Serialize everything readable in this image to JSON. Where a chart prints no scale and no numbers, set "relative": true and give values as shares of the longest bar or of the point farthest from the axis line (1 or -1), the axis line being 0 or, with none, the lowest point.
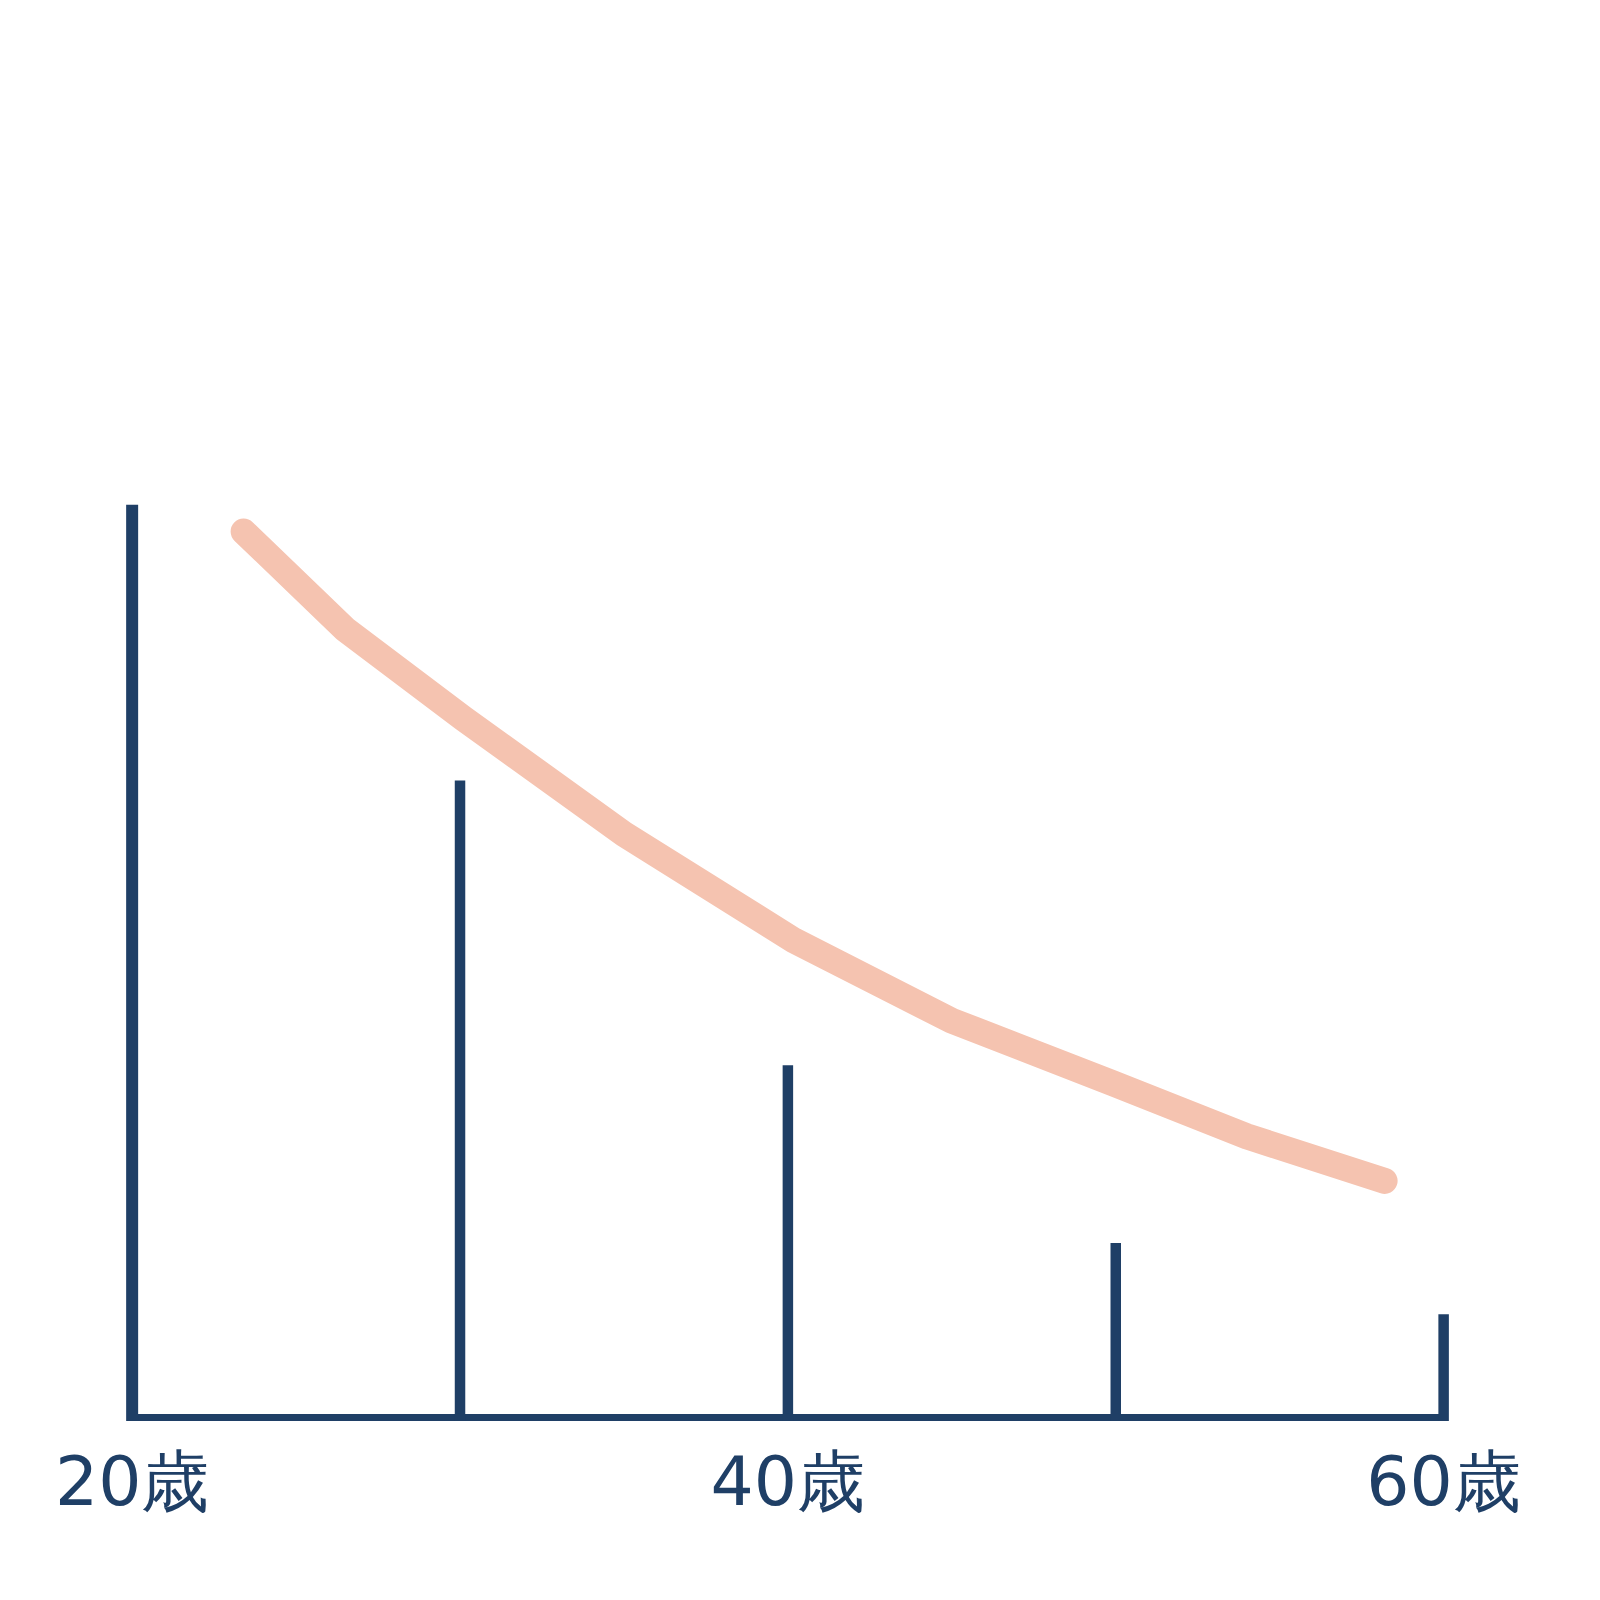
{
  "chart_data": {
    "type": "line",
    "relative": true,
    "xlim": [
      20,
      60
    ],
    "xticks": [
      {
        "value": 20,
        "label": "20歳"
      },
      {
        "value": 40,
        "label": "40歳"
      },
      {
        "value": 60,
        "label": "60歳"
      }
    ],
    "grid": false,
    "line_style": "solid",
    "series": [
      {
        "color": "#f5c3b0",
        "x": [
          23.4,
          26.5,
          30.1,
          35,
          40.2,
          45,
          49.9,
          54,
          58.2
        ],
        "values": [
          1,
          0.89,
          0.79,
          0.66,
          0.54,
          0.45,
          0.38,
          0.32,
          0.27
        ]
      },
      {
        "type": "bar",
        "color": "#1f3f66",
        "x": [
          30,
          40,
          50,
          60
        ],
        "values": [
          0.72,
          0.4,
          0.2,
          0.12
        ]
      }
    ]
  }
}
